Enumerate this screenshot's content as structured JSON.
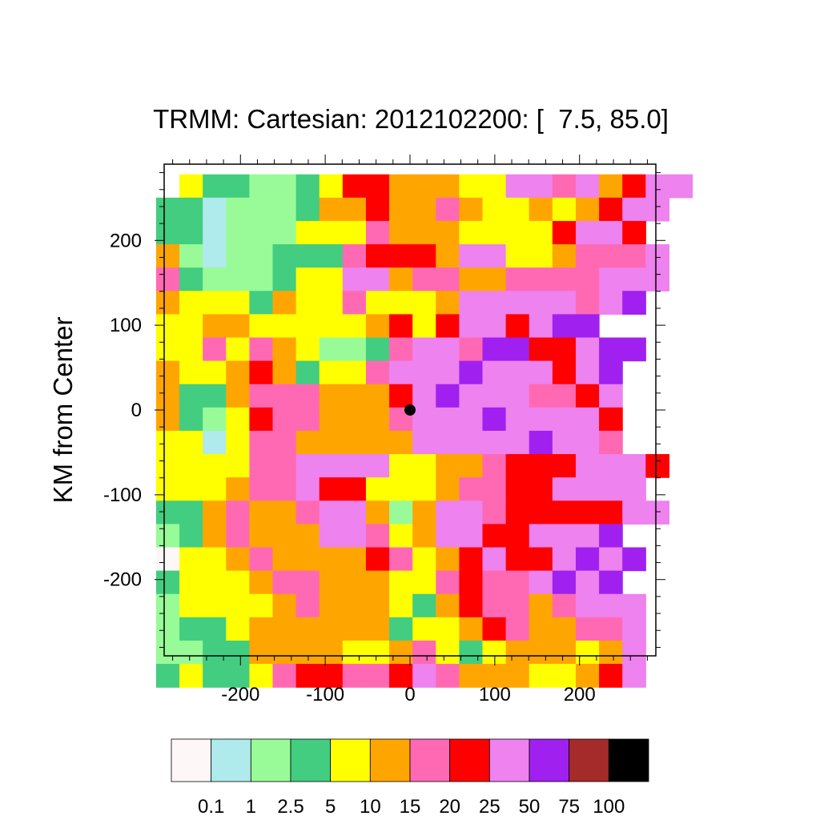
{
  "chart_data": {
    "type": "heatmap",
    "title": "TRMM: Cartesian: 2012102200: [  7.5, 85.0]",
    "xlabel": "",
    "ylabel": "KM from Center",
    "xlim": [
      -290,
      290
    ],
    "ylim": [
      -290,
      290
    ],
    "x_ticks": [
      -200,
      -100,
      0,
      100,
      200
    ],
    "y_ticks": [
      -200,
      -100,
      0,
      100,
      200
    ],
    "cell_size_km": 27.5,
    "center_marker": [
      0,
      0
    ],
    "colorbar": {
      "labels": [
        "0.1",
        "1",
        "2.5",
        "5",
        "10",
        "15",
        "20",
        "25",
        "50",
        "75",
        "100"
      ],
      "colors": [
        "#fdf8f7",
        "#afeaec",
        "#98fb98",
        "#43cd80",
        "#ffff00",
        "#ffa500",
        "#ff69b4",
        "#ff0000",
        "#ee82ee",
        "#a020f0",
        "#a52a2a",
        "#000000"
      ]
    },
    "grid_rows_top_to_bottom": [
      "AYSSGGSYRROOOYYVVPVORVV",
      "SSBGGGSOOROOPOYYOYORVV",
      "SSBGGGYYYPOOOYYYYRVVR",
      "OGBGGSSSPRRROVVYYOPPPV",
      "PSGGGSYYVVOPPOOPPPPVVV",
      "OYYYSOYYPYYYOVVVVVPVU",
      "YYOOYYYYYORYRVVRVUU",
      "YYPYPOYGGSPVVPUURRVUU",
      "OYYOROSYYPVVVUVVVRVU",
      "OSSOPPPOOORVUVVVPPRV",
      "OSGYRPPOOOPVVVUVVVVR",
      "YYBYPPOOOOOVVVVVUVVP",
      "YYYYPPVVVVYYOOPRRRVVVR",
      "YYYOPPVRRYYYOPPRRVVVV",
      "SSOPOOPVVOGOVVPRRRRRVV",
      "GSOPOOOVVPYOVVRRVVVU",
      "WYYOPOOOORPYORVRRVUVU",
      "SYYYOPPOOOYYPRPPVUVU",
      "GYYYYOPOOOYSORPPOPVVV",
      "GSSYOOOOOOSYYORPOOPPV",
      "GGSSOOOOYYOPYSYOOOYOV",
      "SYSSYPRRPPRVPOOOYYORV"
    ]
  }
}
